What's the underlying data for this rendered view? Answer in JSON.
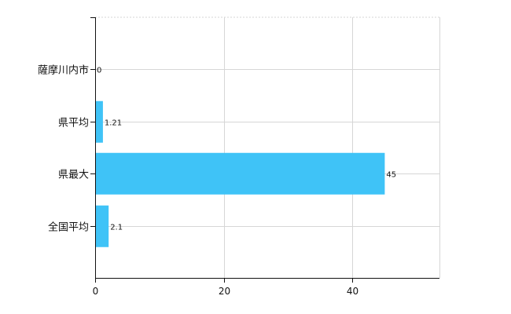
{
  "chart_data": {
    "type": "bar",
    "orientation": "horizontal",
    "title": "",
    "xlabel": "",
    "ylabel": "",
    "categories": [
      "薩摩川内市",
      "県平均",
      "県最大",
      "全国平均"
    ],
    "values": [
      0,
      1.21,
      45,
      2.1
    ],
    "data_labels": [
      "0",
      "1.21",
      "45",
      "2.1"
    ],
    "x_ticks": [
      0,
      20,
      40
    ],
    "x_tick_labels": [
      "0",
      "20",
      "40"
    ],
    "xlim": [
      0,
      53.5
    ],
    "grid": true,
    "legend": "none",
    "bar_color": "#3fc3f7"
  }
}
